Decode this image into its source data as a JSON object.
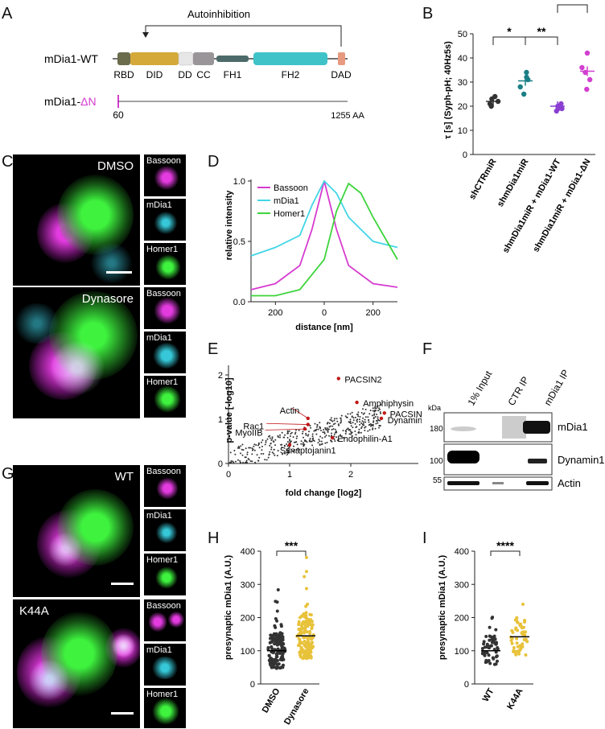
{
  "panels": {
    "A": "A",
    "B": "B",
    "C": "C",
    "D": "D",
    "E": "E",
    "F": "F",
    "G": "G",
    "H": "H",
    "I": "I"
  },
  "panel_a": {
    "autoinhibition": "Autoinhibition",
    "wt_label": "mDia1-WT",
    "dn_prefix": "mDia1-",
    "dn_suffix": "ΔN",
    "domains": [
      "RBD",
      "DID",
      "DD",
      "CC",
      "FH1",
      "FH2",
      "DAD"
    ],
    "start_aa": "60",
    "end_aa": "1255 AA",
    "colors": {
      "RBD": "#6b6b4e",
      "DID": "#d4a93a",
      "DD": "#e6e6e6",
      "CC": "#9a9598",
      "FH1": "#4d6b6b",
      "FH2": "#3fc3c9",
      "DAD": "#e79a80",
      "dn": "#d63bd0"
    }
  },
  "panel_c": {
    "top_label": "DMSO",
    "bottom_label": "Dynasore"
  },
  "panel_g": {
    "top_label": "WT",
    "bottom_label": "K44A"
  },
  "thumb_labels": [
    "Bassoon",
    "mDia1",
    "Homer1"
  ],
  "chart_b": {
    "type": "scatter",
    "ylabel": "τ [s] (Syph-pH; 40Hz5s)",
    "categories": [
      "shCTRmiR",
      "shmDia1miR",
      "shmDia1miR + mDia1-WT",
      "shmDia1miR + mDia1-ΔN"
    ],
    "means": [
      22,
      30.5,
      20,
      34.5
    ],
    "points": [
      [
        20,
        21,
        22,
        23,
        24
      ],
      [
        25,
        28,
        31,
        34,
        32
      ],
      [
        18,
        19,
        20,
        21,
        19
      ],
      [
        27,
        31,
        34,
        36,
        42
      ]
    ],
    "colors": [
      "#333333",
      "#1b7f86",
      "#8a3fd1",
      "#d23fd0"
    ],
    "ylim": [
      0,
      50
    ],
    "yticks": [
      "0",
      "10",
      "20",
      "30",
      "40",
      "50"
    ],
    "sig": [
      "*",
      "**",
      "***"
    ]
  },
  "chart_d": {
    "type": "line",
    "xlabel": "distance [nm]",
    "ylabel": "relative intensity",
    "xticks": [
      "200",
      "0",
      "200"
    ],
    "yticks": [
      "0.0",
      "0.5",
      "1.0"
    ],
    "series": [
      {
        "name": "Bassoon",
        "color": "#d63bd0",
        "x": [
          -300,
          -200,
          -100,
          -50,
          0,
          50,
          100,
          200,
          300
        ],
        "y": [
          0.1,
          0.15,
          0.3,
          0.6,
          1.0,
          0.6,
          0.3,
          0.15,
          0.12
        ]
      },
      {
        "name": "mDia1",
        "color": "#42d6e6",
        "x": [
          -300,
          -200,
          -100,
          -50,
          0,
          50,
          100,
          200,
          300
        ],
        "y": [
          0.38,
          0.45,
          0.55,
          0.8,
          1.0,
          0.9,
          0.7,
          0.5,
          0.45
        ]
      },
      {
        "name": "Homer1",
        "color": "#3dd43b",
        "x": [
          -300,
          -200,
          -100,
          0,
          50,
          100,
          150,
          200,
          300
        ],
        "y": [
          0.05,
          0.05,
          0.1,
          0.35,
          0.75,
          0.98,
          0.9,
          0.7,
          0.35
        ]
      }
    ]
  },
  "chart_e": {
    "type": "scatter",
    "xlabel": "fold change [log2]",
    "ylabel": "p-value [-log10]",
    "xticks": [
      "0",
      "1",
      "2"
    ],
    "yticks": [
      "0",
      "1",
      "2"
    ],
    "labels": [
      "PACSIN2",
      "Amphiphysin",
      "PACSIN1",
      "Dynamin1",
      "Actin",
      "Rac1",
      "MyoIIB",
      "Endophilin-A1",
      "Synaptojanin1"
    ]
  },
  "panel_f": {
    "lanes": [
      "1% Input",
      "CTR IP",
      "mDia1 IP"
    ],
    "kda": "kDa",
    "markers": [
      "180",
      "100",
      "55"
    ],
    "bands": [
      "mDia1",
      "Dynamin1",
      "Actin"
    ]
  },
  "chart_h": {
    "type": "scatter",
    "ylabel": "presynaptic mDia1 (A.U.)",
    "categories": [
      "DMSO",
      "Dynasore"
    ],
    "means": [
      100,
      145
    ],
    "yticks": [
      "0",
      "100",
      "200",
      "300",
      "400"
    ],
    "ylim": [
      0,
      400
    ],
    "sig": "***",
    "colors": [
      "#333333",
      "#e8c23a"
    ]
  },
  "chart_i": {
    "type": "scatter",
    "ylabel": "presynaptic mDia1 (A.U.)",
    "categories": [
      "WT",
      "K44A"
    ],
    "means": [
      100,
      142
    ],
    "yticks": [
      "0",
      "100",
      "200",
      "300",
      "400"
    ],
    "ylim": [
      0,
      400
    ],
    "sig": "****",
    "colors": [
      "#333333",
      "#e8c23a"
    ]
  },
  "chart_data": [
    {
      "type": "scatter",
      "ylabel": "τ [s] (Syph-pH; 40Hz5s)",
      "categories": [
        "shCTRmiR",
        "shmDia1miR",
        "shmDia1miR + mDia1-WT",
        "shmDia1miR + mDia1-ΔN"
      ],
      "values": [
        22,
        30.5,
        20,
        34.5
      ],
      "ylim": [
        0,
        50
      ]
    },
    {
      "type": "line",
      "xlabel": "distance [nm]",
      "ylabel": "relative intensity",
      "series": [
        {
          "name": "Bassoon"
        },
        {
          "name": "mDia1"
        },
        {
          "name": "Homer1"
        }
      ]
    },
    {
      "type": "scatter",
      "xlabel": "fold change [log2]",
      "ylabel": "p-value [-log10]"
    },
    {
      "type": "scatter",
      "ylabel": "presynaptic mDia1 (A.U.)",
      "categories": [
        "DMSO",
        "Dynasore"
      ],
      "values": [
        100,
        145
      ],
      "ylim": [
        0,
        400
      ]
    },
    {
      "type": "scatter",
      "ylabel": "presynaptic mDia1 (A.U.)",
      "categories": [
        "WT",
        "K44A"
      ],
      "values": [
        100,
        142
      ],
      "ylim": [
        0,
        400
      ]
    }
  ]
}
